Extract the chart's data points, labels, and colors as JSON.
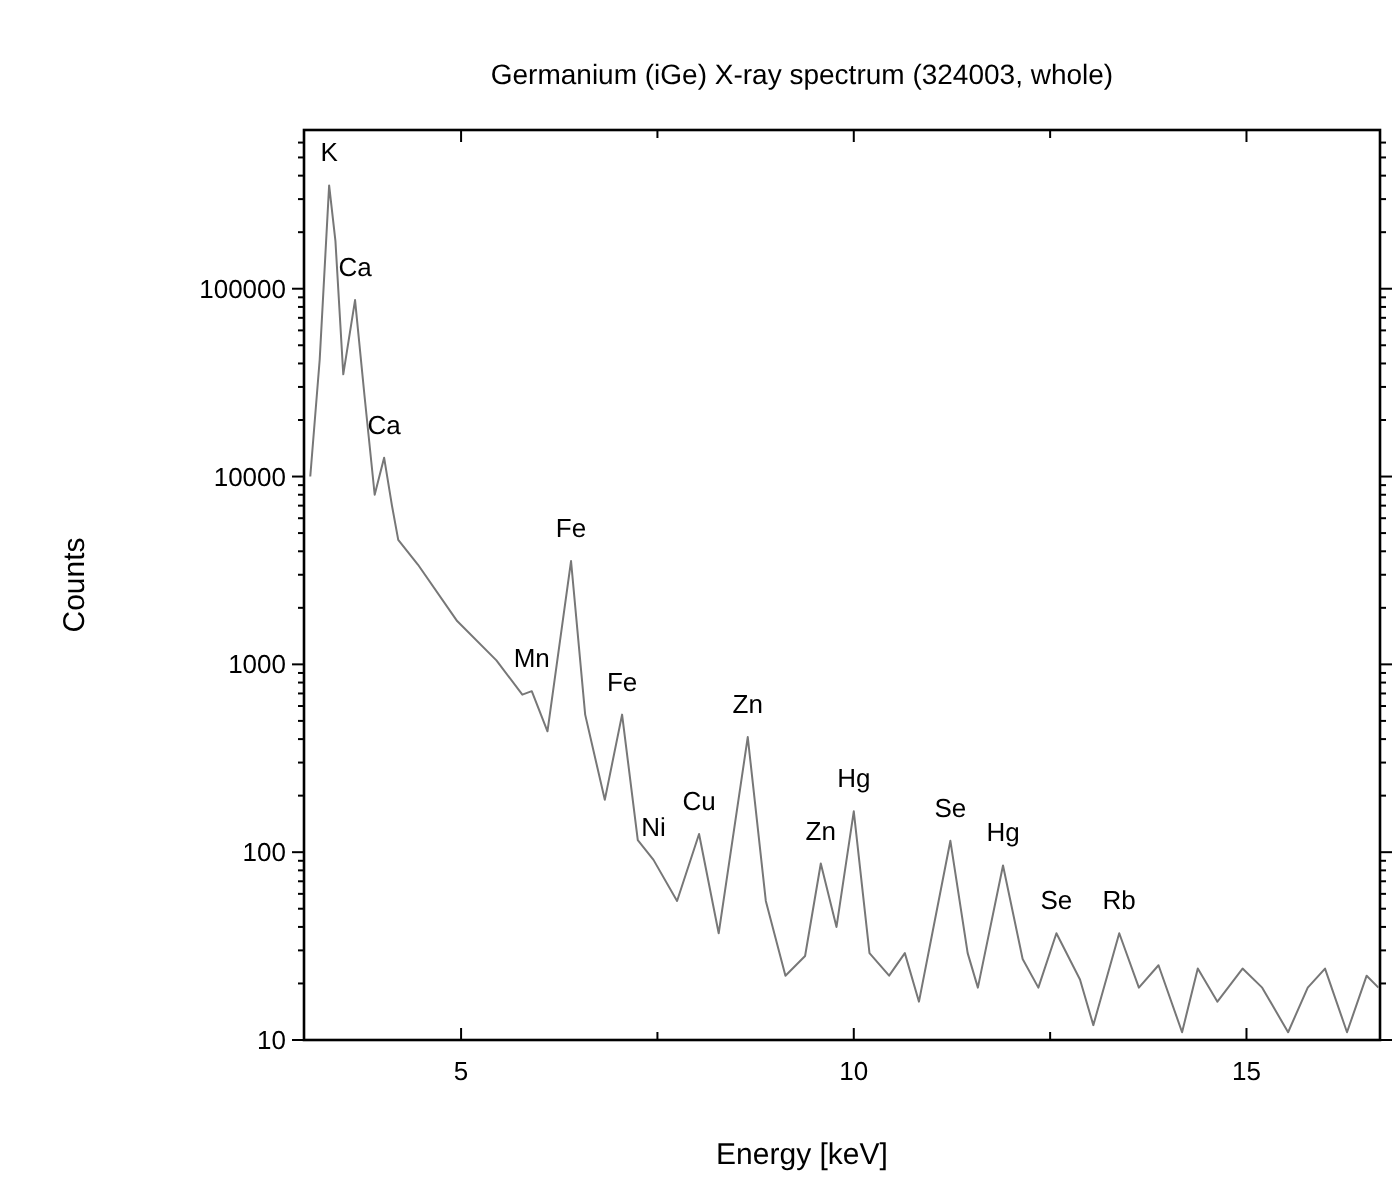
{
  "chart_data": {
    "type": "line",
    "title": "Germanium (iGe) X-ray spectrum (324003, whole)",
    "xlabel": "Energy [keV]",
    "ylabel": "Counts",
    "log": "y",
    "grid": false,
    "marker": "none",
    "line_style": "solid",
    "xlim": [
      3,
      16.7
    ],
    "xticks": [
      5,
      {
        "value": 7.5,
        "label": null
      },
      10,
      {
        "value": 12.5,
        "label": null
      },
      15
    ],
    "ylim": [
      10,
      700000
    ],
    "yticks": [
      10,
      {
        "value": 20,
        "label": null
      },
      {
        "value": 30,
        "label": null
      },
      {
        "value": 40,
        "label": null
      },
      {
        "value": 50,
        "label": null
      },
      {
        "value": 60,
        "label": null
      },
      {
        "value": 70,
        "label": null
      },
      {
        "value": 80,
        "label": null
      },
      {
        "value": 90,
        "label": null
      },
      100,
      {
        "value": 200,
        "label": null
      },
      {
        "value": 300,
        "label": null
      },
      {
        "value": 400,
        "label": null
      },
      {
        "value": 500,
        "label": null
      },
      {
        "value": 600,
        "label": null
      },
      {
        "value": 700,
        "label": null
      },
      {
        "value": 800,
        "label": null
      },
      {
        "value": 900,
        "label": null
      },
      1000,
      {
        "value": 2000,
        "label": null
      },
      {
        "value": 3000,
        "label": null
      },
      {
        "value": 4000,
        "label": null
      },
      {
        "value": 5000,
        "label": null
      },
      {
        "value": 6000,
        "label": null
      },
      {
        "value": 7000,
        "label": null
      },
      {
        "value": 8000,
        "label": null
      },
      {
        "value": 9000,
        "label": null
      },
      10000,
      {
        "value": 20000,
        "label": null
      },
      {
        "value": 30000,
        "label": null
      },
      {
        "value": 40000,
        "label": null
      },
      {
        "value": 50000,
        "label": null
      },
      {
        "value": 60000,
        "label": null
      },
      {
        "value": 70000,
        "label": null
      },
      {
        "value": 80000,
        "label": null
      },
      {
        "value": 90000,
        "label": null
      },
      100000,
      {
        "value": 200000,
        "label": null
      },
      {
        "value": 300000,
        "label": null
      },
      {
        "value": 400000,
        "label": null
      },
      {
        "value": 500000,
        "label": null
      },
      {
        "value": 600000,
        "label": null
      }
    ],
    "x": [
      3.08,
      3.2,
      3.32,
      3.4,
      3.5,
      3.65,
      3.77,
      3.9,
      4.02,
      4.12,
      4.2,
      4.45,
      4.95,
      5.45,
      5.78,
      5.9,
      6.1,
      6.4,
      6.58,
      6.83,
      7.05,
      7.25,
      7.45,
      7.75,
      8.03,
      8.28,
      8.65,
      8.88,
      9.13,
      9.38,
      9.58,
      9.78,
      10.0,
      10.2,
      10.45,
      10.65,
      10.83,
      11.0,
      11.23,
      11.45,
      11.58,
      11.9,
      12.15,
      12.35,
      12.58,
      12.88,
      13.05,
      13.38,
      13.63,
      13.88,
      14.18,
      14.38,
      14.63,
      14.95,
      15.2,
      15.53,
      15.78,
      16.0,
      16.28,
      16.53,
      16.68
    ],
    "series": [
      {
        "color": "#777777",
        "values": [
          10000,
          42000,
          355000,
          180000,
          35000,
          87000,
          27000,
          8000,
          12600,
          7000,
          4600,
          3400,
          1700,
          1050,
          690,
          720,
          440,
          3550,
          540,
          190,
          540,
          116,
          91,
          55,
          125,
          37,
          410,
          55,
          22,
          28,
          87,
          40,
          165,
          29,
          22,
          29,
          16,
          37,
          115,
          29,
          19,
          85,
          27,
          19,
          37,
          21,
          12,
          37,
          19,
          25,
          11,
          24,
          16,
          24,
          19,
          11,
          19,
          24,
          11,
          22,
          19
        ]
      }
    ],
    "annotations": [
      {
        "text": "K",
        "x": 3.32,
        "y": 355000
      },
      {
        "text": "Ca",
        "x": 3.65,
        "y": 87000
      },
      {
        "text": "Ca",
        "x": 4.02,
        "y": 12600
      },
      {
        "text": "Mn",
        "x": 5.9,
        "y": 720
      },
      {
        "text": "Fe",
        "x": 6.4,
        "y": 3550
      },
      {
        "text": "Fe",
        "x": 7.05,
        "y": 540
      },
      {
        "text": "Ni",
        "x": 7.45,
        "y": 91
      },
      {
        "text": "Cu",
        "x": 8.03,
        "y": 125
      },
      {
        "text": "Zn",
        "x": 8.65,
        "y": 410
      },
      {
        "text": "Zn",
        "x": 9.58,
        "y": 87
      },
      {
        "text": "Hg",
        "x": 10.0,
        "y": 165
      },
      {
        "text": "Se",
        "x": 11.23,
        "y": 115
      },
      {
        "text": "Hg",
        "x": 11.9,
        "y": 85
      },
      {
        "text": "Se",
        "x": 12.58,
        "y": 37
      },
      {
        "text": "Rb",
        "x": 13.38,
        "y": 37
      }
    ]
  }
}
